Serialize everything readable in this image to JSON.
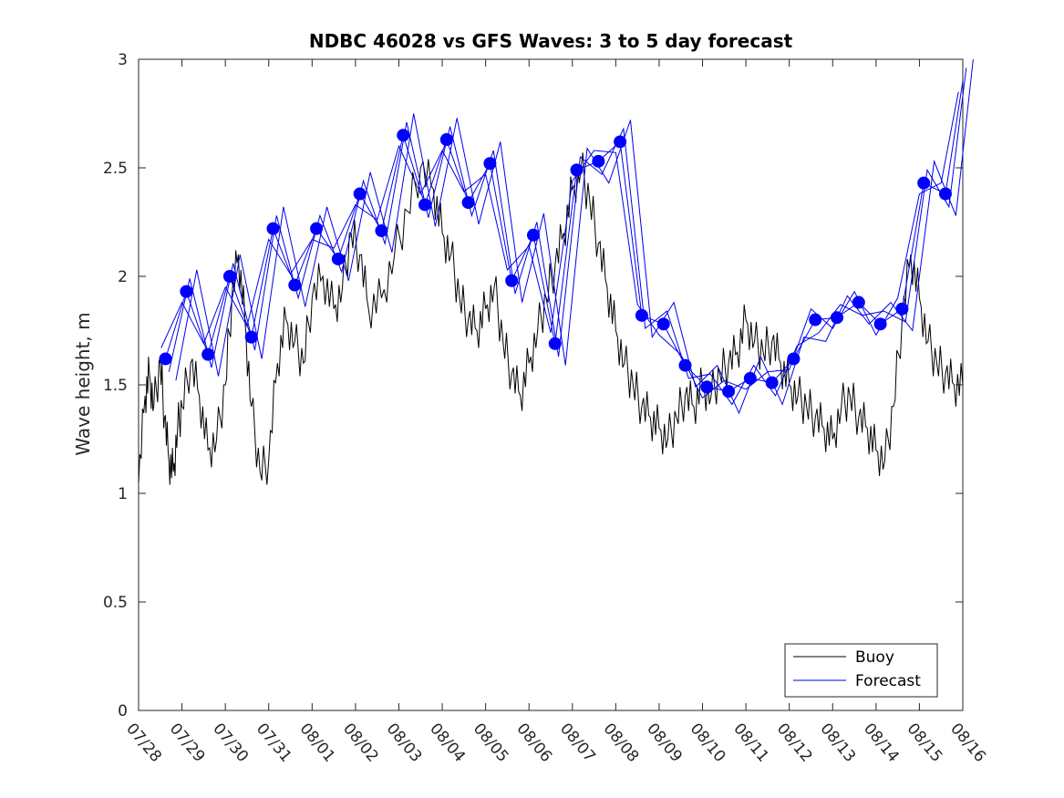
{
  "chart_data": {
    "type": "line",
    "title": "NDBC 46028 vs GFS Waves: 3 to 5 day forecast",
    "xlabel": "",
    "ylabel": "Wave height, m",
    "xlim": [
      0,
      19
    ],
    "ylim": [
      0,
      3
    ],
    "yticks": [
      0,
      0.5,
      1,
      1.5,
      2,
      2.5,
      3
    ],
    "ytick_labels": [
      "0",
      "0.5",
      "1",
      "1.5",
      "2",
      "2.5",
      "3"
    ],
    "xtick_labels": [
      "07/28",
      "07/29",
      "07/30",
      "07/31",
      "08/01",
      "08/02",
      "08/03",
      "08/04",
      "08/05",
      "08/06",
      "08/07",
      "08/08",
      "08/09",
      "08/10",
      "08/11",
      "08/12",
      "08/13",
      "08/14",
      "08/15",
      "08/16"
    ],
    "legend": {
      "position": "bottom-right",
      "entries": [
        "Buoy",
        "Forecast"
      ]
    },
    "colors": {
      "buoy": "#000000",
      "forecast": "#0000ee",
      "markers": "#0000ff"
    },
    "series": [
      {
        "name": "Buoy",
        "x": [
          0,
          0.15,
          0.25,
          0.35,
          0.5,
          0.6,
          0.7,
          0.8,
          0.9,
          1.0,
          1.2,
          1.4,
          1.6,
          1.8,
          2.0,
          2.15,
          2.3,
          2.45,
          2.6,
          2.8,
          3.0,
          3.2,
          3.4,
          3.6,
          3.8,
          4.0,
          4.25,
          4.5,
          4.7,
          4.9,
          5.1,
          5.3,
          5.6,
          5.9,
          6.2,
          6.5,
          6.8,
          7.0,
          7.2,
          7.4,
          7.6,
          7.8,
          8.0,
          8.2,
          8.4,
          8.6,
          8.8,
          9.0,
          9.2,
          9.4,
          9.6,
          9.8,
          10.0,
          10.2,
          10.4,
          10.6,
          10.8,
          11.0,
          11.2,
          11.4,
          11.6,
          11.8,
          12.0,
          12.2,
          12.4,
          12.6,
          12.8,
          13.0,
          13.2,
          13.4,
          13.6,
          13.8,
          14.0,
          14.2,
          14.4,
          14.6,
          14.8,
          15.0,
          15.2,
          15.4,
          15.6,
          15.8,
          16.0,
          16.2,
          16.4,
          16.6,
          16.8,
          17.0,
          17.2,
          17.4,
          17.6,
          17.8,
          18.0,
          18.2,
          18.4,
          18.6,
          18.8,
          19.0
        ],
        "values": [
          1.05,
          1.45,
          1.55,
          1.4,
          1.6,
          1.35,
          1.15,
          1.1,
          1.3,
          1.4,
          1.6,
          1.45,
          1.2,
          1.25,
          1.5,
          1.9,
          2.1,
          1.8,
          1.4,
          1.1,
          1.15,
          1.6,
          1.8,
          1.7,
          1.6,
          1.9,
          2.0,
          1.85,
          1.95,
          2.2,
          2.1,
          1.85,
          1.9,
          2.1,
          2.3,
          2.5,
          2.4,
          2.2,
          2.1,
          1.9,
          1.8,
          1.75,
          1.85,
          1.95,
          1.7,
          1.55,
          1.45,
          1.6,
          1.75,
          1.9,
          2.05,
          2.2,
          2.4,
          2.5,
          2.35,
          2.15,
          1.95,
          1.75,
          1.6,
          1.5,
          1.4,
          1.35,
          1.3,
          1.25,
          1.35,
          1.45,
          1.4,
          1.5,
          1.45,
          1.55,
          1.6,
          1.65,
          1.8,
          1.7,
          1.65,
          1.7,
          1.6,
          1.5,
          1.45,
          1.4,
          1.35,
          1.3,
          1.25,
          1.4,
          1.45,
          1.35,
          1.3,
          1.2,
          1.15,
          1.4,
          1.8,
          2.1,
          1.9,
          1.7,
          1.6,
          1.55,
          1.5,
          1.5
        ]
      },
      {
        "name": "Forecast",
        "x": [
          0.62,
          1.1,
          1.6,
          2.1,
          2.6,
          3.1,
          3.6,
          4.1,
          4.6,
          5.1,
          5.6,
          6.1,
          6.6,
          7.1,
          7.6,
          8.1,
          8.6,
          9.1,
          9.6,
          10.1,
          10.6,
          11.1,
          11.6,
          12.1,
          12.6,
          13.1,
          13.6,
          14.1,
          14.6,
          15.1,
          15.6,
          16.1,
          16.6,
          17.1,
          17.6,
          18.1,
          18.6,
          19.0
        ],
        "values": [
          1.62,
          1.93,
          1.64,
          2.0,
          1.72,
          2.22,
          1.96,
          2.22,
          2.08,
          2.38,
          2.21,
          2.65,
          2.33,
          2.63,
          2.34,
          2.52,
          1.98,
          2.19,
          1.69,
          2.49,
          2.53,
          2.62,
          1.82,
          1.78,
          1.59,
          1.49,
          1.47,
          1.53,
          1.51,
          1.62,
          1.8,
          1.81,
          1.88,
          1.78,
          1.85,
          2.43,
          2.38,
          2.9
        ]
      }
    ],
    "markers": {
      "name": "Forecast",
      "x": [
        0.62,
        1.1,
        1.6,
        2.1,
        2.6,
        3.1,
        3.6,
        4.1,
        4.6,
        5.1,
        5.6,
        6.1,
        6.6,
        7.1,
        7.6,
        8.1,
        8.6,
        9.1,
        9.6,
        10.1,
        10.6,
        11.1,
        11.6,
        12.1,
        12.6,
        13.1,
        13.6,
        14.1,
        14.6,
        15.1,
        15.6,
        16.1,
        16.6,
        17.1,
        17.6,
        18.1,
        18.6
      ],
      "values": [
        1.62,
        1.93,
        1.64,
        2.0,
        1.72,
        2.22,
        1.96,
        2.22,
        2.08,
        2.38,
        2.21,
        2.65,
        2.33,
        2.63,
        2.34,
        2.52,
        1.98,
        2.19,
        1.69,
        2.49,
        2.53,
        2.62,
        1.82,
        1.78,
        1.59,
        1.49,
        1.47,
        1.53,
        1.51,
        1.62,
        1.8,
        1.81,
        1.88,
        1.78,
        1.85,
        2.43,
        2.38
      ]
    }
  }
}
